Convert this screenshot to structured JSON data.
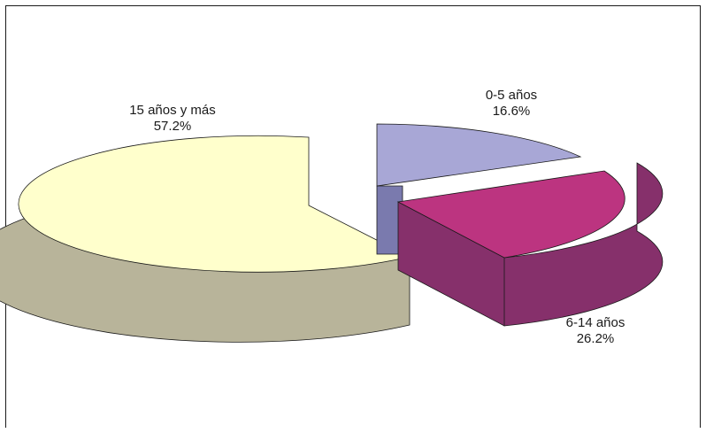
{
  "chart_data": {
    "type": "pie",
    "style": "3d-exploded",
    "title": "",
    "slices": [
      {
        "label": "0-5 años",
        "value": 16.6,
        "value_text": "16.6%",
        "color": "#A8A7D6",
        "side_color": "#7A7AAE"
      },
      {
        "label": "6-14 años",
        "value": 26.2,
        "value_text": "26.2%",
        "color": "#BC3480",
        "side_color": "#86306B"
      },
      {
        "label": "15 años y más",
        "value": 57.2,
        "value_text": "57.2%",
        "color": "#FFFFCC",
        "side_color": "#B8B49A"
      }
    ],
    "legend": "none"
  }
}
